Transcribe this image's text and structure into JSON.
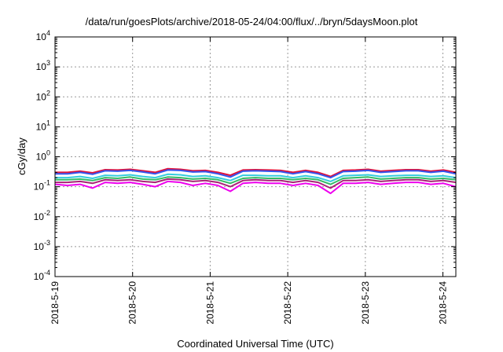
{
  "chart_data": {
    "type": "line",
    "title": "/data/run/goesPlots/archive/2018-05-24/04:00/flux/../bryn/5daysMoon.plot",
    "xlabel": "Coordinated Universal Time (UTC)",
    "ylabel": "cGy/day",
    "yscale": "log",
    "ylim": [
      0.0001,
      10000
    ],
    "y_ticks": [
      {
        "base": "10",
        "exp": "-4",
        "value": 0.0001
      },
      {
        "base": "10",
        "exp": "-3",
        "value": 0.001
      },
      {
        "base": "10",
        "exp": "-2",
        "value": 0.01
      },
      {
        "base": "10",
        "exp": "-1",
        "value": 0.1
      },
      {
        "base": "10",
        "exp": "0",
        "value": 1
      },
      {
        "base": "10",
        "exp": "1",
        "value": 10
      },
      {
        "base": "10",
        "exp": "2",
        "value": 100
      },
      {
        "base": "10",
        "exp": "3",
        "value": 1000
      },
      {
        "base": "10",
        "exp": "4",
        "value": 10000
      }
    ],
    "x_ticks": [
      "2018-5-19",
      "2018-5-20",
      "2018-5-21",
      "2018-5-22",
      "2018-5-23",
      "2018-5-24"
    ],
    "xlim": [
      "2018-05-19T00:00",
      "2018-05-24T04:00"
    ],
    "grid": true,
    "legend": "none",
    "series": [
      {
        "color": "#e0103a",
        "values": [
          0.3,
          0.3,
          0.33,
          0.29,
          0.37,
          0.36,
          0.38,
          0.34,
          0.3,
          0.4,
          0.38,
          0.34,
          0.35,
          0.3,
          0.24,
          0.36,
          0.37,
          0.36,
          0.35,
          0.3,
          0.35,
          0.3,
          0.22,
          0.35,
          0.36,
          0.38,
          0.33,
          0.35,
          0.37,
          0.37,
          0.33,
          0.36,
          0.3
        ]
      },
      {
        "color": "#3355ee",
        "values": [
          0.27,
          0.27,
          0.3,
          0.26,
          0.34,
          0.33,
          0.35,
          0.31,
          0.27,
          0.36,
          0.35,
          0.31,
          0.32,
          0.27,
          0.21,
          0.33,
          0.34,
          0.33,
          0.32,
          0.27,
          0.32,
          0.27,
          0.2,
          0.32,
          0.33,
          0.35,
          0.3,
          0.32,
          0.34,
          0.34,
          0.3,
          0.33,
          0.27
        ]
      },
      {
        "color": "#33ccdd",
        "values": [
          0.2,
          0.2,
          0.22,
          0.19,
          0.24,
          0.23,
          0.25,
          0.22,
          0.2,
          0.26,
          0.25,
          0.22,
          0.23,
          0.2,
          0.16,
          0.24,
          0.24,
          0.23,
          0.23,
          0.2,
          0.23,
          0.2,
          0.15,
          0.23,
          0.24,
          0.25,
          0.22,
          0.23,
          0.24,
          0.24,
          0.22,
          0.23,
          0.2
        ]
      },
      {
        "color": "#33bb66",
        "values": [
          0.17,
          0.17,
          0.18,
          0.16,
          0.2,
          0.19,
          0.21,
          0.18,
          0.17,
          0.21,
          0.2,
          0.18,
          0.19,
          0.17,
          0.13,
          0.19,
          0.2,
          0.19,
          0.19,
          0.17,
          0.19,
          0.17,
          0.12,
          0.19,
          0.2,
          0.21,
          0.18,
          0.19,
          0.2,
          0.2,
          0.18,
          0.19,
          0.17
        ]
      },
      {
        "color": "#aa2277",
        "values": [
          0.14,
          0.14,
          0.15,
          0.13,
          0.17,
          0.16,
          0.17,
          0.15,
          0.14,
          0.18,
          0.17,
          0.15,
          0.16,
          0.14,
          0.1,
          0.16,
          0.17,
          0.16,
          0.16,
          0.14,
          0.16,
          0.14,
          0.09,
          0.16,
          0.16,
          0.17,
          0.15,
          0.16,
          0.17,
          0.17,
          0.15,
          0.16,
          0.14
        ]
      },
      {
        "color": "#ee00ee",
        "values": [
          0.12,
          0.11,
          0.12,
          0.09,
          0.14,
          0.13,
          0.14,
          0.12,
          0.1,
          0.15,
          0.14,
          0.11,
          0.13,
          0.11,
          0.07,
          0.13,
          0.14,
          0.13,
          0.13,
          0.11,
          0.13,
          0.11,
          0.06,
          0.13,
          0.13,
          0.14,
          0.12,
          0.13,
          0.14,
          0.14,
          0.12,
          0.13,
          0.1
        ]
      }
    ]
  }
}
